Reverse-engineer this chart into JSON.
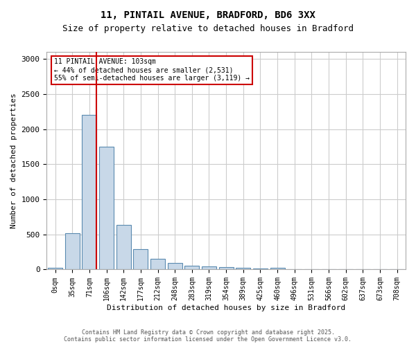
{
  "title_line1": "11, PINTAIL AVENUE, BRADFORD, BD6 3XX",
  "title_line2": "Size of property relative to detached houses in Bradford",
  "xlabel": "Distribution of detached houses by size in Bradford",
  "ylabel": "Number of detached properties",
  "bar_labels": [
    "0sqm",
    "35sqm",
    "71sqm",
    "106sqm",
    "142sqm",
    "177sqm",
    "212sqm",
    "248sqm",
    "283sqm",
    "319sqm",
    "354sqm",
    "389sqm",
    "425sqm",
    "460sqm",
    "496sqm",
    "531sqm",
    "566sqm",
    "602sqm",
    "637sqm",
    "673sqm",
    "708sqm"
  ],
  "bar_values": [
    20,
    520,
    2200,
    1750,
    635,
    290,
    150,
    90,
    55,
    45,
    30,
    25,
    15,
    20,
    5,
    5,
    5,
    3,
    2,
    1,
    1
  ],
  "bar_color": "#c8d8e8",
  "bar_edge_color": "#5a8ab0",
  "grid_color": "#cccccc",
  "vline_x": 2,
  "vline_color": "#cc0000",
  "annotation_text": "11 PINTAIL AVENUE: 103sqm\n← 44% of detached houses are smaller (2,531)\n55% of semi-detached houses are larger (3,119) →",
  "annotation_box_color": "#ffffff",
  "annotation_box_edge": "#cc0000",
  "ylim": [
    0,
    3100
  ],
  "yticks": [
    0,
    500,
    1000,
    1500,
    2000,
    2500,
    3000
  ],
  "footer_line1": "Contains HM Land Registry data © Crown copyright and database right 2025.",
  "footer_line2": "Contains public sector information licensed under the Open Government Licence v3.0.",
  "bg_color": "#ffffff"
}
